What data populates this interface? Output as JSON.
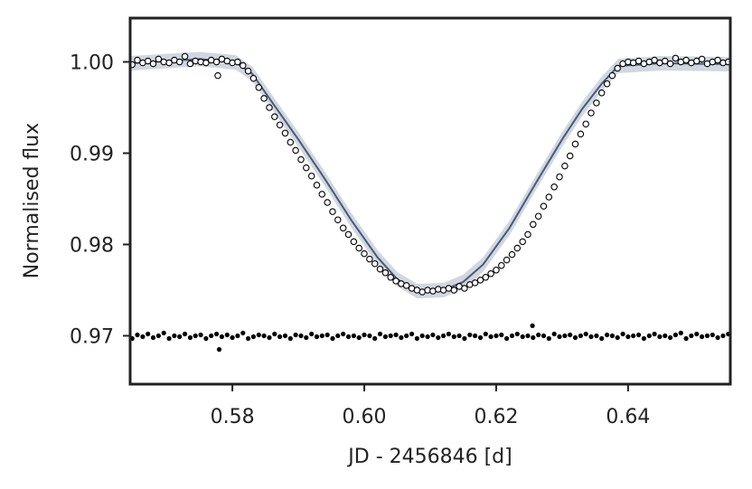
{
  "chart_data": {
    "type": "scatter",
    "title": "",
    "xlabel": "JD - 2456846 [d]",
    "ylabel": "Normalised flux",
    "xlim": [
      0.5645,
      0.6555
    ],
    "ylim": [
      0.9647,
      1.0048
    ],
    "x_ticks": [
      0.58,
      0.6,
      0.62,
      0.64
    ],
    "x_tick_labels": [
      "0.58",
      "0.60",
      "0.62",
      "0.64"
    ],
    "y_ticks": [
      0.97,
      0.98,
      0.99,
      1.0
    ],
    "y_tick_labels": [
      "0.97",
      "0.98",
      "0.99",
      "1.00"
    ],
    "grid": false,
    "transit_model": {
      "x": [
        0.5645,
        0.575,
        0.5805,
        0.583,
        0.586,
        0.59,
        0.594,
        0.598,
        0.602,
        0.605,
        0.608,
        0.612,
        0.615,
        0.618,
        0.622,
        0.626,
        0.63,
        0.633,
        0.636,
        0.6385,
        0.645,
        0.6555
      ],
      "y": [
        0.99985,
        1.0003,
        0.99995,
        0.9987,
        0.9956,
        0.9915,
        0.9872,
        0.9827,
        0.9786,
        0.9762,
        0.9749,
        0.975,
        0.9759,
        0.9778,
        0.9818,
        0.9867,
        0.9915,
        0.9948,
        0.9976,
        0.99955,
        0.99985,
        0.99975
      ]
    },
    "series": [
      {
        "kind": "observed_flux",
        "x": [
          0.5648,
          0.5656,
          0.5664,
          0.5672,
          0.568,
          0.5688,
          0.5696,
          0.5704,
          0.5712,
          0.572,
          0.5728,
          0.5736,
          0.5744,
          0.5752,
          0.576,
          0.5768,
          0.5776,
          0.5784,
          0.5792,
          0.58,
          0.5808,
          0.5816,
          0.5824,
          0.5832,
          0.584,
          0.5848,
          0.5856,
          0.5864,
          0.5872,
          0.588,
          0.5888,
          0.5896,
          0.5904,
          0.5912,
          0.592,
          0.5928,
          0.5936,
          0.5944,
          0.5952,
          0.596,
          0.5968,
          0.5976,
          0.5984,
          0.5992,
          0.6,
          0.6008,
          0.6016,
          0.6024,
          0.6032,
          0.604,
          0.6048,
          0.6056,
          0.6064,
          0.6072,
          0.608,
          0.6088,
          0.6096,
          0.6104,
          0.6112,
          0.612,
          0.6128,
          0.6136,
          0.6144,
          0.6152,
          0.616,
          0.6168,
          0.6176,
          0.6184,
          0.6192,
          0.62,
          0.6208,
          0.6216,
          0.6224,
          0.6232,
          0.624,
          0.6248,
          0.6256,
          0.6264,
          0.6272,
          0.628,
          0.6288,
          0.6296,
          0.6304,
          0.6312,
          0.632,
          0.6328,
          0.6336,
          0.6344,
          0.6352,
          0.636,
          0.6368,
          0.6376,
          0.6384,
          0.6392,
          0.64,
          0.6408,
          0.6416,
          0.6424,
          0.6432,
          0.644,
          0.6448,
          0.6456,
          0.6464,
          0.6472,
          0.648,
          0.6488,
          0.6496,
          0.6504,
          0.6512,
          0.652,
          0.6528,
          0.6536,
          0.6544,
          0.6552,
          0.5778
        ],
        "y": [
          0.9997,
          1.0002,
          0.9999,
          1.0001,
          0.9998,
          1.0003,
          1.0,
          0.9999,
          1.0002,
          1.0,
          1.0006,
          0.9998,
          1.0001,
          1.0,
          0.9999,
          1.0002,
          1.0,
          1.0003,
          1.0001,
          0.9999,
          1.0,
          0.9996,
          0.999,
          0.9982,
          0.9972,
          0.996,
          0.995,
          0.994,
          0.9931,
          0.9922,
          0.9912,
          0.9903,
          0.9893,
          0.9884,
          0.9875,
          0.9865,
          0.9855,
          0.9846,
          0.9836,
          0.9827,
          0.9818,
          0.9811,
          0.9803,
          0.9796,
          0.979,
          0.9784,
          0.9779,
          0.9773,
          0.9769,
          0.9764,
          0.976,
          0.9757,
          0.9755,
          0.9752,
          0.975,
          0.9748,
          0.975,
          0.9749,
          0.9751,
          0.975,
          0.9752,
          0.975,
          0.9754,
          0.9752,
          0.9756,
          0.9758,
          0.9761,
          0.9764,
          0.9768,
          0.9772,
          0.9777,
          0.9783,
          0.9789,
          0.9796,
          0.9803,
          0.9811,
          0.9822,
          0.9831,
          0.9842,
          0.9852,
          0.9863,
          0.9874,
          0.9886,
          0.9897,
          0.991,
          0.9921,
          0.9932,
          0.9944,
          0.9955,
          0.9966,
          0.9976,
          0.9985,
          0.9993,
          0.9998,
          1.0,
          0.9999,
          1.0001,
          0.9998,
          1.0,
          1.0002,
          0.9999,
          1.0001,
          0.9998,
          1.0004,
          1.0,
          1.0002,
          0.9999,
          1.0001,
          1.0003,
          0.9998,
          1.0,
          1.0002,
          0.9999,
          1.0,
          0.9985
        ]
      },
      {
        "kind": "residuals_offset",
        "x": [
          0.5648,
          0.5656,
          0.5664,
          0.5672,
          0.568,
          0.5688,
          0.5696,
          0.5704,
          0.5712,
          0.572,
          0.5728,
          0.5736,
          0.5744,
          0.5752,
          0.576,
          0.5768,
          0.5776,
          0.5784,
          0.5792,
          0.58,
          0.5808,
          0.5816,
          0.5824,
          0.5832,
          0.584,
          0.5848,
          0.5856,
          0.5864,
          0.5872,
          0.588,
          0.5888,
          0.5896,
          0.5904,
          0.5912,
          0.592,
          0.5928,
          0.5936,
          0.5944,
          0.5952,
          0.596,
          0.5968,
          0.5976,
          0.5984,
          0.5992,
          0.6,
          0.6008,
          0.6016,
          0.6024,
          0.6032,
          0.604,
          0.6048,
          0.6056,
          0.6064,
          0.6072,
          0.608,
          0.6088,
          0.6096,
          0.6104,
          0.6112,
          0.612,
          0.6128,
          0.6136,
          0.6144,
          0.6152,
          0.616,
          0.6168,
          0.6176,
          0.6184,
          0.6192,
          0.62,
          0.6208,
          0.6216,
          0.6224,
          0.6232,
          0.624,
          0.6248,
          0.6256,
          0.6264,
          0.6272,
          0.628,
          0.6288,
          0.6296,
          0.6304,
          0.6312,
          0.632,
          0.6328,
          0.6336,
          0.6344,
          0.6352,
          0.636,
          0.6368,
          0.6376,
          0.6384,
          0.6392,
          0.64,
          0.6408,
          0.6416,
          0.6424,
          0.6432,
          0.644,
          0.6448,
          0.6456,
          0.6464,
          0.6472,
          0.648,
          0.6488,
          0.6496,
          0.6504,
          0.6512,
          0.652,
          0.6528,
          0.6536,
          0.6544,
          0.6552,
          0.578,
          0.6255
        ],
        "y": [
          0.9697,
          0.9701,
          0.9699,
          0.9702,
          0.9698,
          0.97,
          0.9703,
          0.9697,
          0.97,
          0.9699,
          0.9702,
          0.9698,
          0.97,
          0.9701,
          0.9697,
          0.97,
          0.9702,
          0.9699,
          0.9701,
          0.9698,
          0.97,
          0.9703,
          0.9697,
          0.9699,
          0.9701,
          0.97,
          0.9698,
          0.9702,
          0.9699,
          0.97,
          0.9697,
          0.9701,
          0.97,
          0.9698,
          0.9702,
          0.9699,
          0.97,
          0.9701,
          0.9697,
          0.97,
          0.9702,
          0.9699,
          0.97,
          0.9698,
          0.9701,
          0.97,
          0.9697,
          0.9702,
          0.9699,
          0.97,
          0.9701,
          0.9698,
          0.97,
          0.9702,
          0.9697,
          0.97,
          0.9699,
          0.9701,
          0.9698,
          0.97,
          0.9702,
          0.9699,
          0.97,
          0.9697,
          0.9701,
          0.97,
          0.9698,
          0.9702,
          0.9699,
          0.97,
          0.9701,
          0.9697,
          0.97,
          0.9702,
          0.9699,
          0.97,
          0.9698,
          0.9701,
          0.97,
          0.9697,
          0.9702,
          0.9699,
          0.97,
          0.9701,
          0.9698,
          0.97,
          0.9702,
          0.9699,
          0.97,
          0.9697,
          0.9701,
          0.97,
          0.9698,
          0.9702,
          0.9699,
          0.97,
          0.9701,
          0.9697,
          0.97,
          0.9702,
          0.9699,
          0.97,
          0.9698,
          0.9701,
          0.9703,
          0.9697,
          0.97,
          0.9702,
          0.9699,
          0.97,
          0.9701,
          0.9698,
          0.97,
          0.9702,
          0.9685,
          0.9711
        ]
      }
    ],
    "colors": {
      "axes": "#222222",
      "model_line": "#4a5a78",
      "model_band": "#c8d0dc",
      "observed_fill": "#ffffff",
      "observed_edge": "#000000",
      "residuals": "#000000"
    }
  }
}
